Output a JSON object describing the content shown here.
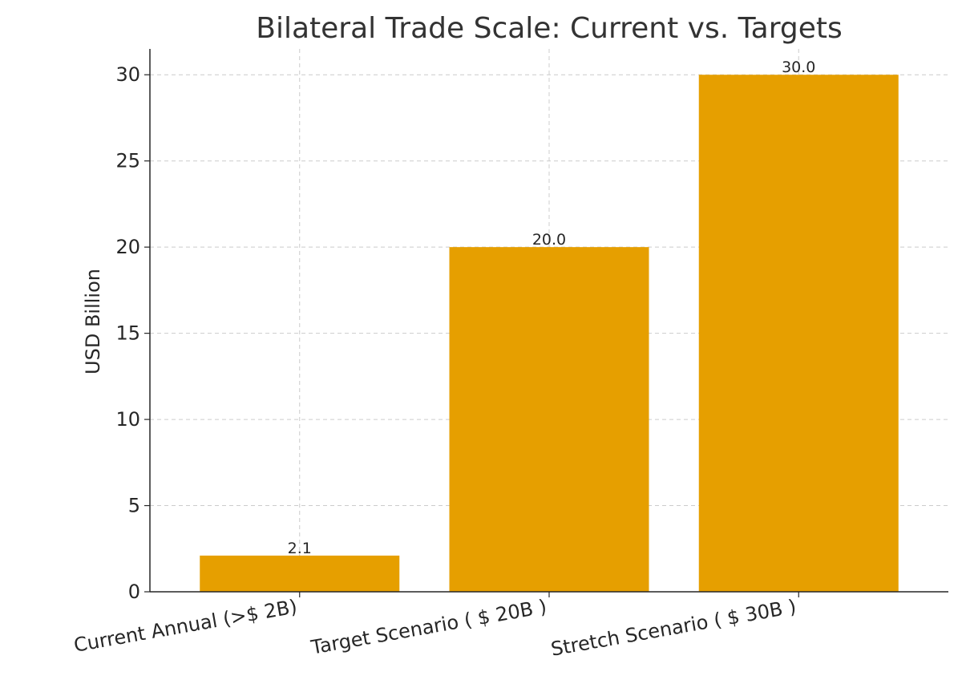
{
  "chart_data": {
    "type": "bar",
    "title": "Bilateral Trade Scale: Current vs. Targets",
    "xlabel": "",
    "ylabel": "USD Billion",
    "categories": [
      "Current Annual (>$ 2B)",
      "Target Scenario ( $ 20B )",
      "Stretch Scenario ( $ 30B )"
    ],
    "values": [
      2.1,
      20.0,
      30.0
    ],
    "data_labels": [
      "2.1",
      "20.0",
      "30.0"
    ],
    "yticks": [
      0,
      5,
      10,
      15,
      20,
      25,
      30
    ],
    "ytick_labels": [
      "0",
      "5",
      "10",
      "15",
      "20",
      "25",
      "30"
    ],
    "ylim": [
      0,
      31.5
    ],
    "grid": true,
    "bar_color": "#E69F00"
  }
}
